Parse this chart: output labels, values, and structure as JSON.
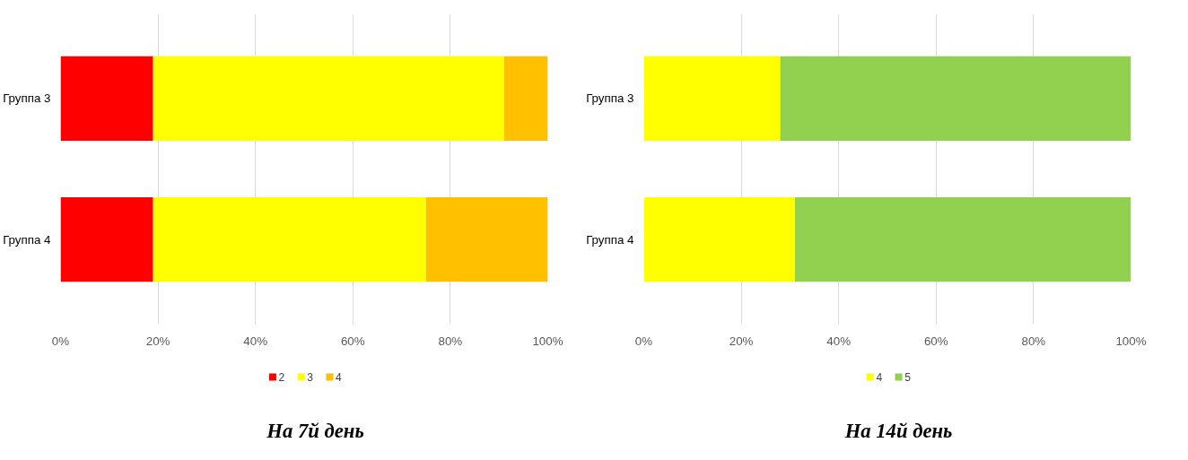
{
  "chart_data": [
    {
      "type": "bar",
      "orientation": "horizontal",
      "stacked": true,
      "title": "На 7й день",
      "categories": [
        "Группа 3",
        "Группа 4"
      ],
      "series": [
        {
          "name": "2",
          "color": "#ff0000",
          "values": [
            19,
            19
          ]
        },
        {
          "name": "3",
          "color": "#ffff00",
          "values": [
            72,
            56
          ]
        },
        {
          "name": "4",
          "color": "#ffc000",
          "values": [
            9,
            25
          ]
        }
      ],
      "xlim": [
        0,
        100
      ],
      "xticks": [
        {
          "value": 0,
          "label": "0%"
        },
        {
          "value": 20,
          "label": "20%"
        },
        {
          "value": 40,
          "label": "40%"
        },
        {
          "value": 60,
          "label": "60%"
        },
        {
          "value": 80,
          "label": "80%"
        },
        {
          "value": 100,
          "label": "100%"
        }
      ],
      "grid": "x",
      "legend": "bottom"
    },
    {
      "type": "bar",
      "orientation": "horizontal",
      "stacked": true,
      "title": "На 14й день",
      "categories": [
        "Группа 3",
        "Группа 4"
      ],
      "series": [
        {
          "name": "4",
          "color": "#ffff00",
          "values": [
            28,
            31
          ]
        },
        {
          "name": "5",
          "color": "#92d050",
          "values": [
            72,
            69
          ]
        }
      ],
      "xlim": [
        0,
        100
      ],
      "xticks": [
        {
          "value": 0,
          "label": "0%"
        },
        {
          "value": 20,
          "label": "20%"
        },
        {
          "value": 40,
          "label": "40%"
        },
        {
          "value": 60,
          "label": "60%"
        },
        {
          "value": 80,
          "label": "80%"
        },
        {
          "value": 100,
          "label": "100%"
        }
      ],
      "grid": "x",
      "legend": "bottom"
    }
  ]
}
